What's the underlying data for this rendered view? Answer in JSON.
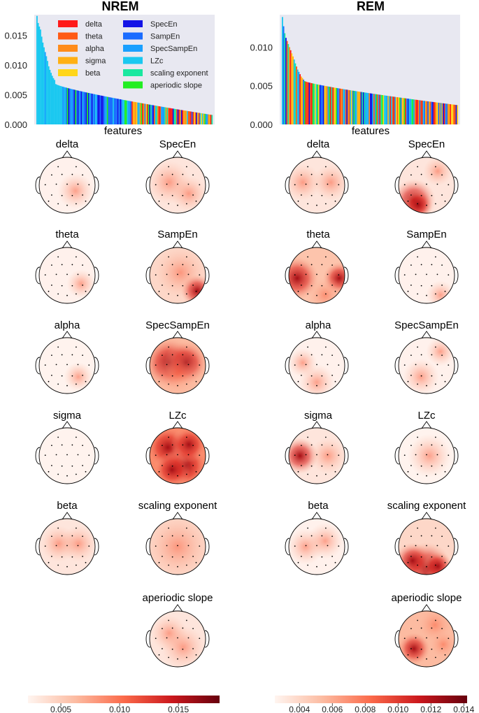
{
  "panels": [
    {
      "title": "NREM",
      "xlabel": "features",
      "yticks": [
        "0.000",
        "0.005",
        "0.010",
        "0.015"
      ],
      "ytick_values": [
        0,
        0.005,
        0.01,
        0.015
      ],
      "ylim": [
        0,
        0.0185
      ],
      "cbar_ticks": [
        "0.005",
        "0.010",
        "0.015"
      ],
      "cbar_tick_values": [
        0.005,
        0.01,
        0.015
      ],
      "cbar_range": [
        0.0022,
        0.0185
      ]
    },
    {
      "title": "REM",
      "xlabel": "features",
      "yticks": [
        "0.000",
        "0.005",
        "0.010"
      ],
      "ytick_values": [
        0,
        0.005,
        0.01
      ],
      "ylim": [
        0,
        0.0142
      ],
      "cbar_ticks": [
        "0.004",
        "0.006",
        "0.008",
        "0.010",
        "0.012",
        "0.014"
      ],
      "cbar_tick_values": [
        0.004,
        0.006,
        0.008,
        0.01,
        0.012,
        0.014
      ],
      "cbar_range": [
        0.0025,
        0.0142
      ]
    }
  ],
  "legend": [
    {
      "label": "delta",
      "color": "#ff1a1a"
    },
    {
      "label": "theta",
      "color": "#ff5a14"
    },
    {
      "label": "alpha",
      "color": "#ff8c1a"
    },
    {
      "label": "sigma",
      "color": "#ffb014"
    },
    {
      "label": "beta",
      "color": "#ffd61a"
    },
    {
      "label": "SpecEn",
      "color": "#1414e6"
    },
    {
      "label": "SampEn",
      "color": "#1a6cff"
    },
    {
      "label": "SpecSampEn",
      "color": "#1aa0ff"
    },
    {
      "label": "LZc",
      "color": "#1ac8f0"
    },
    {
      "label": "scaling exponent",
      "color": "#1ae8a0"
    },
    {
      "label": "aperiodic slope",
      "color": "#22ee22"
    }
  ],
  "topo_titles": {
    "left_col": [
      "delta",
      "theta",
      "alpha",
      "sigma",
      "beta"
    ],
    "right_col": [
      "SpecEn",
      "SampEn",
      "SpecSampEn",
      "LZc",
      "scaling exponent",
      "aperiodic slope"
    ]
  },
  "chart_data": [
    {
      "type": "bar",
      "title": "NREM",
      "xlabel": "features",
      "ylabel": "",
      "ylim": [
        0,
        0.0185
      ],
      "description_values": "feature importances sorted descending, colored by feature type",
      "top_values": [
        0.0183,
        0.0171,
        0.0165,
        0.016,
        0.0148,
        0.0138,
        0.013,
        0.0122,
        0.0115,
        0.0107,
        0.0098,
        0.0092,
        0.0087,
        0.0082,
        0.0078,
        0.0075
      ],
      "tail_start": 0.0068,
      "tail_end": 0.0016,
      "n_bars": 150,
      "series_by_color": [
        "delta",
        "theta",
        "alpha",
        "sigma",
        "beta",
        "SpecEn",
        "SampEn",
        "SpecSampEn",
        "LZc",
        "scaling exponent",
        "aperiodic slope"
      ]
    },
    {
      "type": "bar",
      "title": "REM",
      "xlabel": "features",
      "ylabel": "",
      "ylim": [
        0,
        0.0142
      ],
      "top_values": [
        0.0139,
        0.0127,
        0.0118,
        0.0112,
        0.0108,
        0.0104,
        0.01,
        0.0096,
        0.0092,
        0.0088,
        0.0084,
        0.0079,
        0.0075,
        0.0071,
        0.0068,
        0.0065,
        0.0062,
        0.006,
        0.0058
      ],
      "tail_start": 0.0056,
      "tail_end": 0.0025,
      "n_bars": 150,
      "series_by_color": [
        "delta",
        "theta",
        "alpha",
        "sigma",
        "beta",
        "SpecEn",
        "SampEn",
        "SpecSampEn",
        "LZc",
        "scaling exponent",
        "aperiodic slope"
      ]
    }
  ]
}
